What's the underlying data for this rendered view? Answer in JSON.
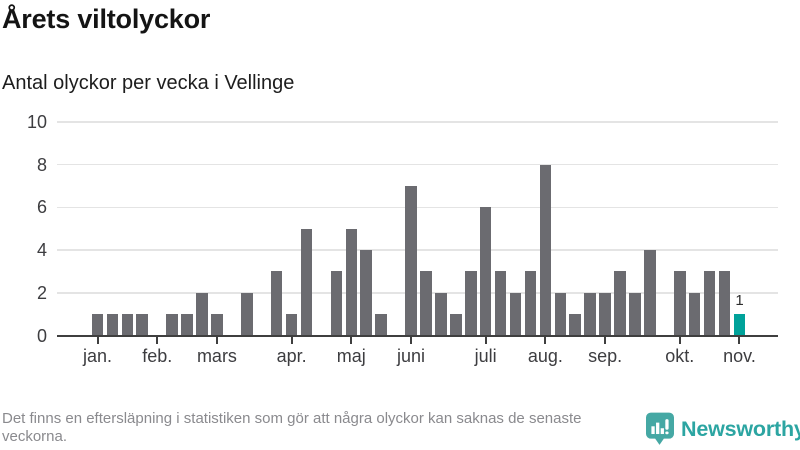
{
  "header": {
    "title": "Årets viltolyckor",
    "subtitle": "Antal olyckor per vecka i Vellinge"
  },
  "chart_data": {
    "type": "bar",
    "title": "Årets viltolyckor",
    "subtitle": "Antal olyckor per vecka i Vellinge",
    "x_unit": "week",
    "values": [
      1,
      1,
      1,
      1,
      0,
      1,
      1,
      2,
      1,
      0,
      2,
      0,
      3,
      1,
      5,
      0,
      3,
      5,
      4,
      1,
      0,
      7,
      3,
      2,
      1,
      3,
      6,
      3,
      2,
      3,
      8,
      2,
      1,
      2,
      2,
      3,
      2,
      4,
      0,
      3,
      2,
      3,
      3,
      1
    ],
    "month_ticks": [
      {
        "label": "jan.",
        "week": 0
      },
      {
        "label": "feb.",
        "week": 4
      },
      {
        "label": "mars",
        "week": 8
      },
      {
        "label": "apr.",
        "week": 13
      },
      {
        "label": "maj",
        "week": 17
      },
      {
        "label": "juni",
        "week": 21
      },
      {
        "label": "juli",
        "week": 26
      },
      {
        "label": "aug.",
        "week": 30
      },
      {
        "label": "sep.",
        "week": 34
      },
      {
        "label": "okt.",
        "week": 39
      },
      {
        "label": "nov.",
        "week": 43
      }
    ],
    "yticks": [
      0,
      2,
      4,
      6,
      8,
      10
    ],
    "ylim": [
      0,
      10
    ],
    "grid": true,
    "legend": false,
    "highlight_last_index": 43,
    "highlight_value_label": "1",
    "colors": {
      "bar": "#6b6b70",
      "highlight": "#00a29a",
      "grid": "#e4e4e4",
      "axis": "#3f3f3f",
      "tick_labels": "#3d3d40"
    }
  },
  "footer": {
    "note": "Det finns en eftersläpning i statistiken som gör att några olyckor kan saknas de senaste veckorna.",
    "logo_text": "Newsworthy",
    "logo_color": "#2ca5a2",
    "logo_icon": "newsworthy-speech-bubble-barchart-icon",
    "logo_icon_color": "#45a8a4"
  }
}
